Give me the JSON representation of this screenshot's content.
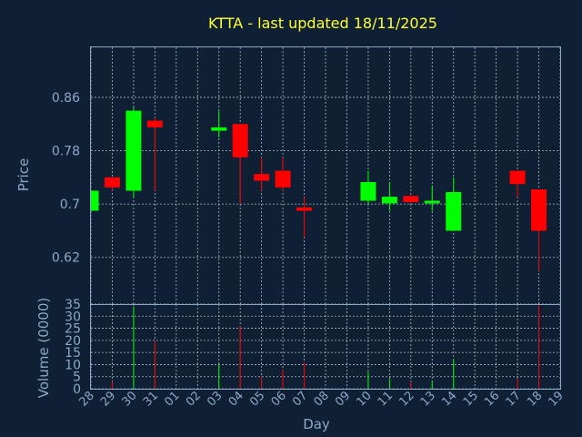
{
  "chart_data": {
    "type": "candlestick",
    "title": "KTTA - last updated 18/11/2025",
    "ylabel": "Price",
    "volume_label": "Volume (0000)",
    "xlabel": "Day",
    "ylim": [
      0.55,
      0.935
    ],
    "yticks": [
      "0.86",
      "0.78",
      "0.7",
      "0.62"
    ],
    "volume_ylim": [
      0,
      35
    ],
    "volume_ticks": [
      "0",
      "5",
      "10",
      "15",
      "20",
      "25",
      "30",
      "35"
    ],
    "x_labels": [
      "28",
      "29",
      "30",
      "31",
      "01",
      "02",
      "03",
      "04",
      "05",
      "06",
      "07",
      "08",
      "09",
      "10",
      "11",
      "12",
      "13",
      "14",
      "15",
      "16",
      "17",
      "18",
      "19"
    ],
    "up_color": "#00ff00",
    "down_color": "#ff0000",
    "candles": [
      {
        "day": "28",
        "open": 0.69,
        "high": 0.72,
        "low": 0.69,
        "close": 0.72,
        "volume": 0
      },
      {
        "day": "29",
        "open": 0.74,
        "high": 0.74,
        "low": 0.72,
        "close": 0.725,
        "volume": 3
      },
      {
        "day": "30",
        "open": 0.72,
        "high": 0.845,
        "low": 0.71,
        "close": 0.84,
        "volume": 34
      },
      {
        "day": "31",
        "open": 0.825,
        "high": 0.83,
        "low": 0.72,
        "close": 0.815,
        "volume": 20
      },
      {
        "day": "03",
        "open": 0.81,
        "high": 0.84,
        "low": 0.8,
        "close": 0.815,
        "volume": 10
      },
      {
        "day": "04",
        "open": 0.82,
        "high": 0.82,
        "low": 0.7,
        "close": 0.77,
        "volume": 26
      },
      {
        "day": "05",
        "open": 0.745,
        "high": 0.77,
        "low": 0.72,
        "close": 0.735,
        "volume": 5
      },
      {
        "day": "06",
        "open": 0.75,
        "high": 0.77,
        "low": 0.72,
        "close": 0.725,
        "volume": 8
      },
      {
        "day": "07",
        "open": 0.695,
        "high": 0.71,
        "low": 0.65,
        "close": 0.69,
        "volume": 11
      },
      {
        "day": "10",
        "open": 0.705,
        "high": 0.75,
        "low": 0.7,
        "close": 0.733,
        "volume": 7
      },
      {
        "day": "11",
        "open": 0.701,
        "high": 0.733,
        "low": 0.69,
        "close": 0.711,
        "volume": 4
      },
      {
        "day": "12",
        "open": 0.712,
        "high": 0.715,
        "low": 0.7,
        "close": 0.703,
        "volume": 3
      },
      {
        "day": "13",
        "open": 0.701,
        "high": 0.728,
        "low": 0.69,
        "close": 0.705,
        "volume": 3
      },
      {
        "day": "14",
        "open": 0.66,
        "high": 0.74,
        "low": 0.66,
        "close": 0.718,
        "volume": 12
      },
      {
        "day": "17",
        "open": 0.75,
        "high": 0.75,
        "low": 0.71,
        "close": 0.73,
        "volume": 4
      },
      {
        "day": "18",
        "open": 0.722,
        "high": 0.722,
        "low": 0.6,
        "close": 0.66,
        "volume": 35
      }
    ]
  }
}
